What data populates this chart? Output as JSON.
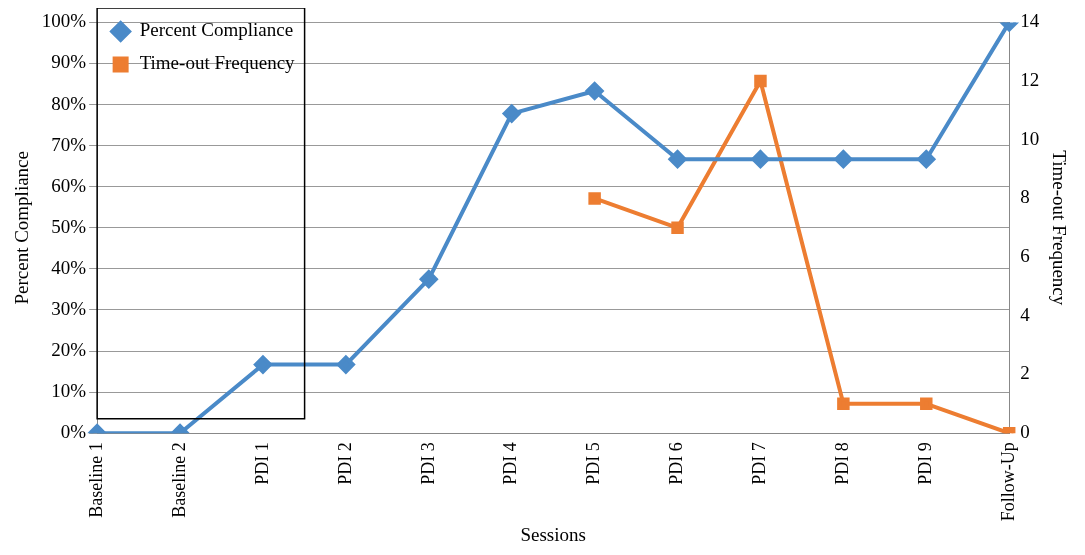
{
  "chart_data": {
    "type": "line",
    "xlabel": "Sessions",
    "ylabel": "Percent Compliance",
    "y2label": "Time-out Frequency",
    "categories": [
      "Baseline 1",
      "Baseline 2",
      "PDI 1",
      "PDI 2",
      "PDI 3",
      "PDI 4",
      "PDI 5",
      "PDI 6",
      "PDI 7",
      "PDI 8",
      "PDI 9",
      "Follow-Up"
    ],
    "series": [
      {
        "name": "Percent Compliance",
        "color": "#4a8ac8",
        "marker": "diamond",
        "values": [
          0,
          0,
          16.7,
          16.7,
          37.5,
          77.8,
          83.3,
          66.7,
          66.7,
          66.7,
          66.7,
          100
        ]
      },
      {
        "name": "Time-out Frequency",
        "color": "#ed7d31",
        "marker": "square",
        "axis": "y2",
        "values": [
          null,
          null,
          null,
          null,
          null,
          null,
          8,
          7,
          12,
          1,
          1,
          0
        ]
      }
    ],
    "ylim": [
      0,
      100
    ],
    "yticks": [
      {
        "value": 0,
        "label": "0%"
      },
      {
        "value": 10,
        "label": "10%"
      },
      {
        "value": 20,
        "label": "20%"
      },
      {
        "value": 30,
        "label": "30%"
      },
      {
        "value": 40,
        "label": "40%"
      },
      {
        "value": 50,
        "label": "50%"
      },
      {
        "value": 60,
        "label": "60%"
      },
      {
        "value": 70,
        "label": "70%"
      },
      {
        "value": 80,
        "label": "80%"
      },
      {
        "value": 90,
        "label": "90%"
      },
      {
        "value": 100,
        "label": "100%"
      }
    ],
    "y2lim": [
      0,
      14
    ],
    "y2ticks": [
      0,
      2,
      4,
      6,
      8,
      10,
      12,
      14
    ],
    "grid": "y",
    "legend": "top left",
    "line_style": "solid"
  }
}
